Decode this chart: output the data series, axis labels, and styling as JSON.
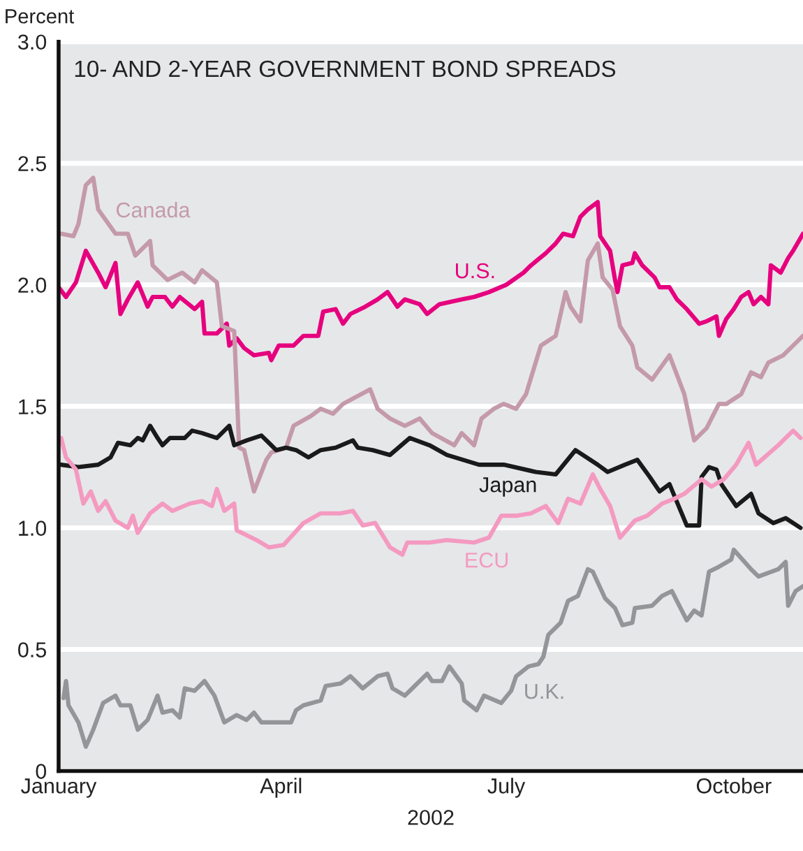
{
  "chart_data": {
    "type": "line",
    "title": "10- AND 2-YEAR GOVERNMENT BOND SPREADS",
    "ylabel": "Percent",
    "xlabel": "2002",
    "xlim": [
      "2002-01-01",
      "2002-10-29"
    ],
    "xticks": [
      {
        "value": "2002-01-01",
        "label": "January"
      },
      {
        "value": "2002-04-01",
        "label": "April"
      },
      {
        "value": "2002-07-01",
        "label": "July"
      },
      {
        "value": "2002-10-01",
        "label": "October"
      }
    ],
    "ylim": [
      0,
      3.0
    ],
    "yticks": [
      0,
      0.5,
      {
        "value": 1.0,
        "label": "1.0"
      },
      1.5,
      {
        "value": 2.0,
        "label": "2.0"
      },
      2.5,
      {
        "value": 3.0,
        "label": "3.0"
      }
    ],
    "grid": "y",
    "legend": false,
    "series": [
      {
        "name": "U.S.",
        "color": "#e6007e",
        "x": [
          "2002-01-01",
          "2002-01-04",
          "2002-01-08",
          "2002-01-12",
          "2002-01-17",
          "2002-01-20",
          "2002-01-24",
          "2002-01-26",
          "2002-01-29",
          "2002-02-02",
          "2002-02-06",
          "2002-02-08",
          "2002-02-13",
          "2002-02-16",
          "2002-02-19",
          "2002-02-25",
          "2002-02-28",
          "2002-03-01",
          "2002-03-06",
          "2002-03-10",
          "2002-03-11",
          "2002-03-14",
          "2002-03-17",
          "2002-03-21",
          "2002-03-27",
          "2002-03-28",
          "2002-03-31",
          "2002-04-06",
          "2002-04-10",
          "2002-04-16",
          "2002-04-18",
          "2002-04-23",
          "2002-04-26",
          "2002-04-29",
          "2002-05-05",
          "2002-05-10",
          "2002-05-14",
          "2002-05-18",
          "2002-05-21",
          "2002-05-27",
          "2002-05-30",
          "2002-06-04",
          "2002-06-13",
          "2002-06-18",
          "2002-06-24",
          "2002-07-01",
          "2002-07-08",
          "2002-07-11",
          "2002-07-17",
          "2002-07-21",
          "2002-07-24",
          "2002-07-28",
          "2002-07-31",
          "2002-08-03",
          "2002-08-07",
          "2002-08-08",
          "2002-08-12",
          "2002-08-14",
          "2002-08-15",
          "2002-08-17",
          "2002-08-21",
          "2002-08-22",
          "2002-08-25",
          "2002-08-30",
          "2002-09-01",
          "2002-09-05",
          "2002-09-08",
          "2002-09-12",
          "2002-09-17",
          "2002-09-20",
          "2002-09-24",
          "2002-09-25",
          "2002-09-28",
          "2002-10-01",
          "2002-10-04",
          "2002-10-07",
          "2002-10-09",
          "2002-10-12",
          "2002-10-15",
          "2002-10-16",
          "2002-10-20",
          "2002-10-23",
          "2002-10-25",
          "2002-10-29"
        ],
        "values": [
          1.99,
          1.95,
          2.01,
          2.14,
          2.05,
          1.99,
          2.09,
          1.88,
          1.94,
          2.01,
          1.91,
          1.95,
          1.95,
          1.91,
          1.95,
          1.9,
          1.93,
          1.8,
          1.8,
          1.84,
          1.75,
          1.78,
          1.74,
          1.71,
          1.72,
          1.69,
          1.75,
          1.75,
          1.79,
          1.79,
          1.89,
          1.9,
          1.84,
          1.88,
          1.91,
          1.94,
          1.97,
          1.91,
          1.94,
          1.92,
          1.88,
          1.92,
          1.94,
          1.95,
          1.97,
          2.0,
          2.05,
          2.08,
          2.13,
          2.17,
          2.21,
          2.2,
          2.28,
          2.31,
          2.34,
          2.2,
          2.14,
          2.02,
          1.97,
          2.08,
          2.09,
          2.13,
          2.08,
          2.03,
          1.99,
          1.99,
          1.94,
          1.9,
          1.84,
          1.85,
          1.87,
          1.79,
          1.86,
          1.9,
          1.95,
          1.97,
          1.92,
          1.95,
          1.92,
          2.08,
          2.05,
          2.11,
          2.14,
          2.21
        ]
      },
      {
        "name": "Canada",
        "color": "#c49aaa",
        "x": [
          "2002-01-02",
          "2002-01-07",
          "2002-01-09",
          "2002-01-12",
          "2002-01-15",
          "2002-01-17",
          "2002-01-24",
          "2002-01-29",
          "2002-02-01",
          "2002-02-07",
          "2002-02-08",
          "2002-02-14",
          "2002-02-20",
          "2002-02-25",
          "2002-02-28",
          "2002-03-06",
          "2002-03-08",
          "2002-03-13",
          "2002-03-15",
          "2002-03-17",
          "2002-03-21",
          "2002-03-26",
          "2002-03-28",
          "2002-04-03",
          "2002-04-06",
          "2002-04-13",
          "2002-04-17",
          "2002-04-22",
          "2002-04-26",
          "2002-05-07",
          "2002-05-10",
          "2002-05-15",
          "2002-05-21",
          "2002-05-27",
          "2002-06-01",
          "2002-06-10",
          "2002-06-13",
          "2002-06-18",
          "2002-06-21",
          "2002-06-26",
          "2002-06-30",
          "2002-07-05",
          "2002-07-09",
          "2002-07-15",
          "2002-07-21",
          "2002-07-25",
          "2002-07-27",
          "2002-07-31",
          "2002-08-03",
          "2002-08-07",
          "2002-08-09",
          "2002-08-13",
          "2002-08-16",
          "2002-08-21",
          "2002-08-23",
          "2002-08-29",
          "2002-09-05",
          "2002-09-11",
          "2002-09-15",
          "2002-09-20",
          "2002-09-25",
          "2002-09-28",
          "2002-10-01",
          "2002-10-04",
          "2002-10-08",
          "2002-10-12",
          "2002-10-15",
          "2002-10-21",
          "2002-10-26",
          "2002-10-29"
        ],
        "values": [
          2.21,
          2.2,
          2.25,
          2.41,
          2.44,
          2.31,
          2.21,
          2.21,
          2.12,
          2.18,
          2.08,
          2.02,
          2.05,
          2.01,
          2.06,
          2.01,
          1.83,
          1.81,
          1.33,
          1.32,
          1.15,
          1.28,
          1.31,
          1.33,
          1.42,
          1.46,
          1.49,
          1.47,
          1.51,
          1.57,
          1.49,
          1.45,
          1.42,
          1.45,
          1.39,
          1.34,
          1.39,
          1.34,
          1.45,
          1.49,
          1.51,
          1.49,
          1.55,
          1.75,
          1.79,
          1.97,
          1.91,
          1.85,
          2.1,
          2.17,
          2.03,
          1.98,
          1.83,
          1.75,
          1.66,
          1.61,
          1.71,
          1.55,
          1.36,
          1.41,
          1.51,
          1.51,
          1.53,
          1.55,
          1.64,
          1.62,
          1.68,
          1.71,
          1.76,
          1.79
        ]
      },
      {
        "name": "Japan",
        "color": "#1a1a1a",
        "x": [
          "2002-01-02",
          "2002-01-09",
          "2002-01-17",
          "2002-01-22",
          "2002-01-25",
          "2002-01-30",
          "2002-02-02",
          "2002-02-04",
          "2002-02-07",
          "2002-02-10",
          "2002-02-12",
          "2002-02-15",
          "2002-02-21",
          "2002-02-24",
          "2002-02-28",
          "2002-03-06",
          "2002-03-11",
          "2002-03-13",
          "2002-03-18",
          "2002-03-24",
          "2002-03-27",
          "2002-03-30",
          "2002-04-03",
          "2002-04-07",
          "2002-04-12",
          "2002-04-17",
          "2002-04-23",
          "2002-04-30",
          "2002-05-02",
          "2002-05-08",
          "2002-05-15",
          "2002-05-23",
          "2002-05-31",
          "2002-06-07",
          "2002-06-20",
          "2002-06-30",
          "2002-07-13",
          "2002-07-21",
          "2002-07-29",
          "2002-08-07",
          "2002-08-11",
          "2002-08-18",
          "2002-08-23",
          "2002-08-28",
          "2002-09-01",
          "2002-09-05",
          "2002-09-12",
          "2002-09-17",
          "2002-09-18",
          "2002-09-21",
          "2002-09-24",
          "2002-09-26",
          "2002-10-02",
          "2002-10-08",
          "2002-10-11",
          "2002-10-17",
          "2002-10-22",
          "2002-10-28"
        ],
        "values": [
          1.26,
          1.25,
          1.26,
          1.29,
          1.35,
          1.34,
          1.37,
          1.36,
          1.42,
          1.37,
          1.34,
          1.37,
          1.37,
          1.4,
          1.39,
          1.37,
          1.42,
          1.34,
          1.36,
          1.38,
          1.35,
          1.32,
          1.33,
          1.32,
          1.29,
          1.32,
          1.33,
          1.36,
          1.33,
          1.32,
          1.3,
          1.37,
          1.34,
          1.3,
          1.26,
          1.26,
          1.23,
          1.22,
          1.32,
          1.26,
          1.23,
          1.26,
          1.28,
          1.21,
          1.15,
          1.18,
          1.01,
          1.01,
          1.21,
          1.25,
          1.24,
          1.18,
          1.09,
          1.14,
          1.06,
          1.02,
          1.04,
          1.0
        ]
      },
      {
        "name": "ECU",
        "color": "#f49ac1",
        "x": [
          "2002-01-02",
          "2002-01-04",
          "2002-01-08",
          "2002-01-11",
          "2002-01-14",
          "2002-01-17",
          "2002-01-20",
          "2002-01-24",
          "2002-01-29",
          "2002-01-31",
          "2002-02-02",
          "2002-02-07",
          "2002-02-12",
          "2002-02-16",
          "2002-02-23",
          "2002-02-28",
          "2002-03-04",
          "2002-03-06",
          "2002-03-09",
          "2002-03-13",
          "2002-03-14",
          "2002-03-22",
          "2002-03-27",
          "2002-04-02",
          "2002-04-10",
          "2002-04-17",
          "2002-04-25",
          "2002-04-30",
          "2002-05-04",
          "2002-05-09",
          "2002-05-15",
          "2002-05-20",
          "2002-05-22",
          "2002-05-31",
          "2002-06-07",
          "2002-06-18",
          "2002-06-24",
          "2002-06-29",
          "2002-07-05",
          "2002-07-11",
          "2002-07-17",
          "2002-07-22",
          "2002-07-26",
          "2002-07-31",
          "2002-08-05",
          "2002-08-08",
          "2002-08-12",
          "2002-08-16",
          "2002-08-22",
          "2002-08-27",
          "2002-09-02",
          "2002-09-07",
          "2002-09-11",
          "2002-09-18",
          "2002-09-22",
          "2002-09-27",
          "2002-10-02",
          "2002-10-07",
          "2002-10-10",
          "2002-10-19",
          "2002-10-25",
          "2002-10-28"
        ],
        "values": [
          1.37,
          1.29,
          1.24,
          1.1,
          1.15,
          1.07,
          1.11,
          1.03,
          1.0,
          1.05,
          0.98,
          1.06,
          1.1,
          1.07,
          1.1,
          1.11,
          1.09,
          1.16,
          1.07,
          1.1,
          0.99,
          0.95,
          0.92,
          0.93,
          1.02,
          1.06,
          1.06,
          1.07,
          1.01,
          1.02,
          0.92,
          0.89,
          0.94,
          0.94,
          0.95,
          0.94,
          0.96,
          1.05,
          1.05,
          1.06,
          1.09,
          1.02,
          1.12,
          1.1,
          1.22,
          1.16,
          1.09,
          0.96,
          1.03,
          1.05,
          1.1,
          1.12,
          1.14,
          1.2,
          1.17,
          1.2,
          1.26,
          1.35,
          1.26,
          1.34,
          1.4,
          1.37
        ]
      },
      {
        "name": "U.K.",
        "color": "#939598",
        "x": [
          "2002-01-03",
          "2002-01-04",
          "2002-01-05",
          "2002-01-09",
          "2002-01-12",
          "2002-01-15",
          "2002-01-19",
          "2002-01-24",
          "2002-01-26",
          "2002-01-30",
          "2002-02-02",
          "2002-02-06",
          "2002-02-10",
          "2002-02-12",
          "2002-02-16",
          "2002-02-19",
          "2002-02-21",
          "2002-02-25",
          "2002-03-01",
          "2002-03-05",
          "2002-03-09",
          "2002-03-14",
          "2002-03-18",
          "2002-03-21",
          "2002-03-24",
          "2002-03-30",
          "2002-04-05",
          "2002-04-07",
          "2002-04-10",
          "2002-04-17",
          "2002-04-19",
          "2002-04-25",
          "2002-04-29",
          "2002-05-04",
          "2002-05-10",
          "2002-05-14",
          "2002-05-16",
          "2002-05-21",
          "2002-05-24",
          "2002-05-30",
          "2002-06-01",
          "2002-06-05",
          "2002-06-08",
          "2002-06-13",
          "2002-06-14",
          "2002-06-19",
          "2002-06-22",
          "2002-06-29",
          "2002-07-03",
          "2002-07-05",
          "2002-07-10",
          "2002-07-14",
          "2002-07-16",
          "2002-07-18",
          "2002-07-23",
          "2002-07-26",
          "2002-07-30",
          "2002-08-03",
          "2002-08-05",
          "2002-08-10",
          "2002-08-14",
          "2002-08-17",
          "2002-08-21",
          "2002-08-22",
          "2002-08-29",
          "2002-09-02",
          "2002-09-06",
          "2002-09-12",
          "2002-09-15",
          "2002-09-18",
          "2002-09-21",
          "2002-09-25",
          "2002-09-30",
          "2002-10-01",
          "2002-10-08",
          "2002-10-11",
          "2002-10-19",
          "2002-10-22",
          "2002-10-23",
          "2002-10-26",
          "2002-10-29"
        ],
        "values": [
          0.3,
          0.37,
          0.27,
          0.2,
          0.1,
          0.17,
          0.28,
          0.31,
          0.27,
          0.27,
          0.17,
          0.21,
          0.31,
          0.24,
          0.25,
          0.22,
          0.34,
          0.33,
          0.37,
          0.31,
          0.2,
          0.23,
          0.21,
          0.24,
          0.2,
          0.2,
          0.2,
          0.25,
          0.27,
          0.29,
          0.35,
          0.36,
          0.39,
          0.34,
          0.39,
          0.4,
          0.34,
          0.31,
          0.34,
          0.4,
          0.37,
          0.37,
          0.43,
          0.36,
          0.29,
          0.25,
          0.31,
          0.28,
          0.33,
          0.39,
          0.43,
          0.44,
          0.47,
          0.56,
          0.61,
          0.7,
          0.72,
          0.83,
          0.82,
          0.71,
          0.67,
          0.6,
          0.61,
          0.67,
          0.68,
          0.72,
          0.74,
          0.62,
          0.66,
          0.64,
          0.82,
          0.84,
          0.87,
          0.91,
          0.83,
          0.8,
          0.83,
          0.86,
          0.68,
          0.74,
          0.76
        ]
      }
    ]
  }
}
